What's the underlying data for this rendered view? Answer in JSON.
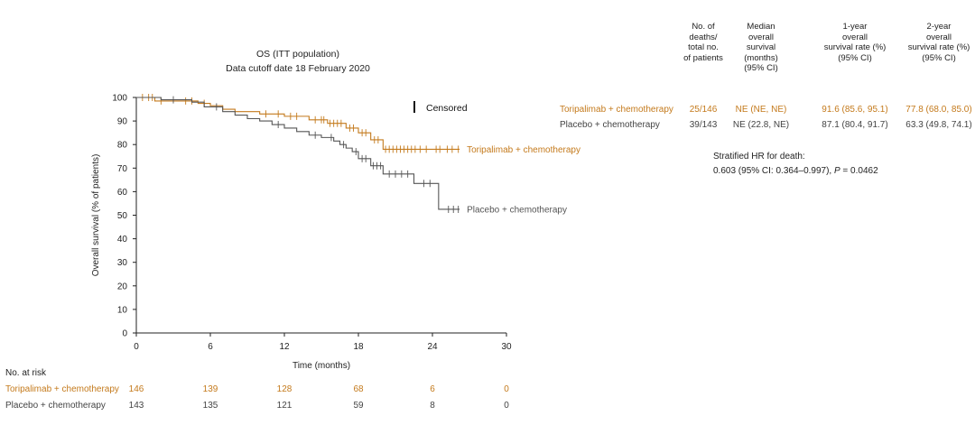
{
  "colors": {
    "toripalimab": "#c47a1c",
    "placebo": "#555555",
    "axis": "#222222"
  },
  "chart_data": {
    "type": "line",
    "title": "OS (ITT population)",
    "subtitle": "Data cutoff date 18 February 2020",
    "xlabel": "Time (months)",
    "ylabel": "Overall survival (% of patients)",
    "xlim": [
      0,
      30
    ],
    "ylim": [
      0,
      100
    ],
    "x_ticks": [
      0,
      6,
      12,
      18,
      24,
      30
    ],
    "y_ticks": [
      0,
      10,
      20,
      30,
      40,
      50,
      60,
      70,
      80,
      90,
      100
    ],
    "legend_censored": "Censored",
    "series": [
      {
        "name": "Toripalimab + chemotherapy",
        "color": "#c47a1c",
        "x": [
          0,
          1.5,
          1.5,
          5,
          5,
          6,
          6,
          7,
          7,
          8,
          8,
          10,
          10,
          12,
          12,
          14,
          14,
          15.5,
          15.5,
          17,
          17,
          18,
          18,
          19,
          19,
          20,
          20,
          26.2
        ],
        "y": [
          100,
          100,
          98.5,
          98.5,
          97.5,
          97.5,
          96.5,
          96.5,
          95,
          95,
          94,
          94,
          93,
          93,
          92,
          92,
          90.5,
          90.5,
          89,
          89,
          87,
          87,
          85,
          85,
          82,
          82,
          78,
          78
        ],
        "censored_x": [
          0.5,
          1.0,
          1.3,
          2.0,
          4.0,
          4.5,
          5.5,
          10.5,
          11.5,
          12.5,
          13.0,
          14.5,
          15.0,
          15.2,
          15.7,
          16.0,
          16.3,
          16.6,
          17.3,
          17.6,
          18.3,
          18.6,
          19.3,
          19.6,
          20.2,
          20.5,
          20.8,
          21.1,
          21.4,
          21.7,
          22.0,
          22.3,
          22.6,
          23.0,
          23.5,
          24.3,
          24.6,
          25.2,
          25.6,
          26.1
        ]
      },
      {
        "name": "Placebo + chemotherapy",
        "color": "#555555",
        "x": [
          0,
          2,
          2,
          4.5,
          4.5,
          5.5,
          5.5,
          7,
          7,
          8,
          8,
          9,
          9,
          10,
          10,
          11,
          11,
          12,
          12,
          13,
          13,
          14,
          14,
          15,
          15,
          16,
          16,
          16.5,
          16.5,
          17,
          17,
          17.5,
          17.5,
          18,
          18,
          19,
          19,
          20,
          20,
          22.5,
          22.5,
          24.5,
          24.5,
          26.2
        ],
        "y": [
          100,
          100,
          99,
          99,
          98,
          98,
          96,
          96,
          94,
          94,
          92.5,
          92.5,
          91,
          91,
          90,
          90,
          88.5,
          88.5,
          87,
          87,
          85.5,
          85.5,
          84,
          84,
          83,
          83,
          81.5,
          81.5,
          80,
          80,
          78.5,
          78.5,
          77,
          77,
          74,
          74,
          71,
          71,
          67.5,
          67.5,
          63.5,
          63.5,
          52.5,
          52.5
        ],
        "censored_x": [
          3.0,
          6.5,
          11.5,
          14.5,
          15.8,
          16.8,
          17.8,
          18.3,
          18.6,
          19.2,
          19.5,
          19.8,
          20.5,
          21.0,
          21.5,
          22.0,
          23.3,
          23.8,
          25.3,
          25.7,
          26.1
        ]
      }
    ]
  },
  "at_risk": {
    "heading": "No. at risk",
    "rows": [
      {
        "label": "Toripalimab + chemotherapy",
        "values": [
          "146",
          "139",
          "128",
          "68",
          "6",
          "0"
        ]
      },
      {
        "label": "Placebo + chemotherapy",
        "values": [
          "143",
          "135",
          "121",
          "59",
          "8",
          "0"
        ]
      }
    ]
  },
  "summary_table": {
    "headers": [
      [
        "No. of",
        "deaths/",
        "total no.",
        "of patients"
      ],
      [
        "Median",
        "overall",
        "survival",
        "(months)",
        "(95% CI)"
      ],
      [
        "1-year",
        "overall",
        "survival rate (%)",
        "(95% CI)"
      ],
      [
        "2-year",
        "overall",
        "survival rate (%)",
        "(95% CI)"
      ]
    ],
    "rows": [
      {
        "label": "Toripalimab + chemotherapy",
        "deaths": "25/146",
        "median": "NE (NE, NE)",
        "one_year": "91.6 (85.6, 95.1)",
        "two_year": "77.8 (68.0, 85.0)"
      },
      {
        "label": "Placebo + chemotherapy",
        "deaths": "39/143",
        "median": "NE (22.8, NE)",
        "one_year": "87.1 (80.4, 91.7)",
        "two_year": "63.3 (49.8, 74.1)"
      }
    ]
  },
  "hazard": {
    "label": "Stratified HR for death:",
    "value_prefix": "0.603 (95% CI: 0.364–0.997), ",
    "p_symbol": "P",
    "p_value": " = 0.0462"
  }
}
